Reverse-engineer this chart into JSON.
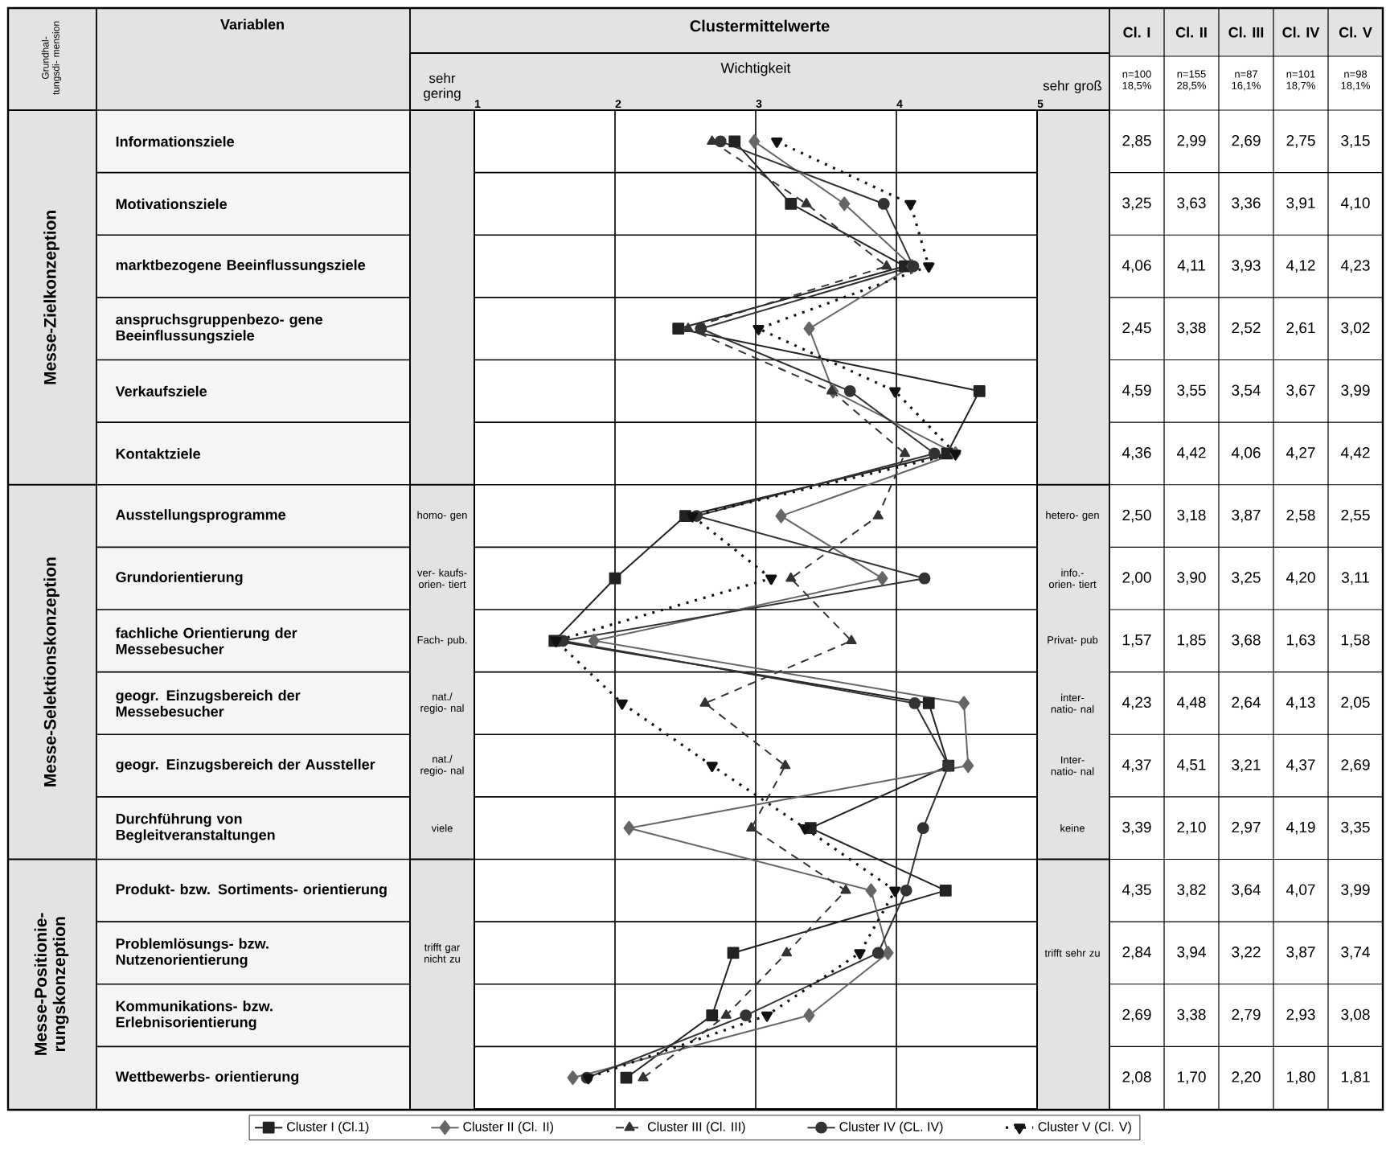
{
  "chart_data": {
    "type": "line",
    "orientation": "horizontal",
    "title": "Clustermittelwerte",
    "xlabel": "Wichtigkeit",
    "categories": [
      "Informationsziele",
      "Motivationsziele",
      "marktbezogene Beeinflussungsziele",
      "anspruchsgruppenbezo- gene Beeinflussungsziele",
      "Verkaufsziele",
      "Kontaktziele",
      "Ausstellungsprogramme",
      "Grundorientierung",
      "fachliche Orientierung der Messebesucher",
      "geogr. Einzugsbereich der Messebesucher",
      "geogr. Einzugsbereich der Aussteller",
      "Durchführung von Begleitveranstaltungen",
      "Produkt- bzw. Sortiments- orientierung",
      "Problemlösungs- bzw. Nutzenorientierung",
      "Kommunikations- bzw. Erlebnisorientierung",
      "Wettbewerbs- orientierung"
    ],
    "series": [
      {
        "name": "Cluster I (Cl.1)",
        "color": "#222222",
        "marker": "square",
        "line_style": "solid",
        "values": [
          2.85,
          3.25,
          4.06,
          2.45,
          4.59,
          4.36,
          2.5,
          2.0,
          1.57,
          4.23,
          4.37,
          3.39,
          4.35,
          2.84,
          2.69,
          2.08
        ],
        "value_labels": [
          "2,85",
          "3,25",
          "4,06",
          "2,45",
          "4,59",
          "4,36",
          "2,50",
          "2,00",
          "1,57",
          "4,23",
          "4,37",
          "3,39",
          "4,35",
          "2,84",
          "2,69",
          "2,08"
        ]
      },
      {
        "name": "Cluster II (Cl. II)",
        "color": "#666666",
        "marker": "diamond",
        "line_style": "solid",
        "values": [
          2.99,
          3.63,
          4.11,
          3.38,
          3.55,
          4.42,
          3.18,
          3.9,
          1.85,
          4.48,
          4.51,
          2.1,
          3.82,
          3.94,
          3.38,
          1.7
        ],
        "value_labels": [
          "2,99",
          "3,63",
          "4,11",
          "3,38",
          "3,55",
          "4,42",
          "3,18",
          "3,90",
          "1,85",
          "4,48",
          "4,51",
          "2,10",
          "3,82",
          "3,94",
          "3,38",
          "1,70"
        ]
      },
      {
        "name": "Cluster III (Cl. III)",
        "color": "#333333",
        "marker": "triangle",
        "line_style": "dashed",
        "values": [
          2.69,
          3.36,
          3.93,
          2.52,
          3.54,
          4.06,
          3.87,
          3.25,
          3.68,
          2.64,
          3.21,
          2.97,
          3.64,
          3.22,
          2.79,
          2.2
        ],
        "value_labels": [
          "2,69",
          "3,36",
          "3,93",
          "2,52",
          "3,54",
          "4,06",
          "3,87",
          "3,25",
          "3,68",
          "2,64",
          "3,21",
          "2,97",
          "3,64",
          "3,22",
          "2,79",
          "2,20"
        ]
      },
      {
        "name": "Cluster IV (CL. IV)",
        "color": "#333333",
        "marker": "circle",
        "line_style": "solid",
        "values": [
          2.75,
          3.91,
          4.12,
          2.61,
          3.67,
          4.27,
          2.58,
          4.2,
          1.63,
          4.13,
          4.37,
          4.19,
          4.07,
          3.87,
          2.93,
          1.8
        ],
        "value_labels": [
          "2,75",
          "3,91",
          "4,12",
          "2,61",
          "3,67",
          "4,27",
          "2,58",
          "4,20",
          "1,63",
          "4,13",
          "4,37",
          "4,19",
          "4,07",
          "3,87",
          "2,93",
          "1,80"
        ]
      },
      {
        "name": "Cluster V (Cl. V)",
        "color": "#111111",
        "marker": "triangle-down",
        "line_style": "dotted",
        "values": [
          3.15,
          4.1,
          4.23,
          3.02,
          3.99,
          4.42,
          2.55,
          3.11,
          1.58,
          2.05,
          2.69,
          3.35,
          3.99,
          3.74,
          3.08,
          1.81
        ],
        "value_labels": [
          "3,15",
          "4,10",
          "4,23",
          "3,02",
          "3,99",
          "4,42",
          "2,55",
          "3,11",
          "1,58",
          "2,05",
          "2,69",
          "3,35",
          "3,99",
          "3,74",
          "3,08",
          "1,81"
        ]
      }
    ],
    "xlim": [
      1,
      5
    ],
    "xticks": [
      1,
      2,
      3,
      4,
      5
    ],
    "grid": true,
    "legend": "bottom",
    "annotations": [
      "Grundhal- tungsdi- mension",
      "Variablen",
      "Cl. I",
      "Cl. II",
      "Cl. III",
      "Cl. IV",
      "Cl. V",
      "n=100 18,5%",
      "n=155 28,5%",
      "n=87 16,1%",
      "n=101 18,7%",
      "n=98 18,1%",
      "Messe-Zielkonzeption",
      "Messe-Selektionskonzeption",
      "Messe-Positionie- rungskonzeption",
      "sehr gering",
      "sehr groß",
      "homo- gen",
      "ver- kaufs- orien- tiert",
      "Fach- pub.",
      "nat./ regio- nal",
      "nat./ regio- nal",
      "viele",
      "trifft gar nicht zu",
      "hetero- gen",
      "info.- orien- tiert",
      "Privat- pub",
      "inter- natio- nal",
      "Inter- natio- nal",
      "keine",
      "trifft sehr zu"
    ]
  }
}
